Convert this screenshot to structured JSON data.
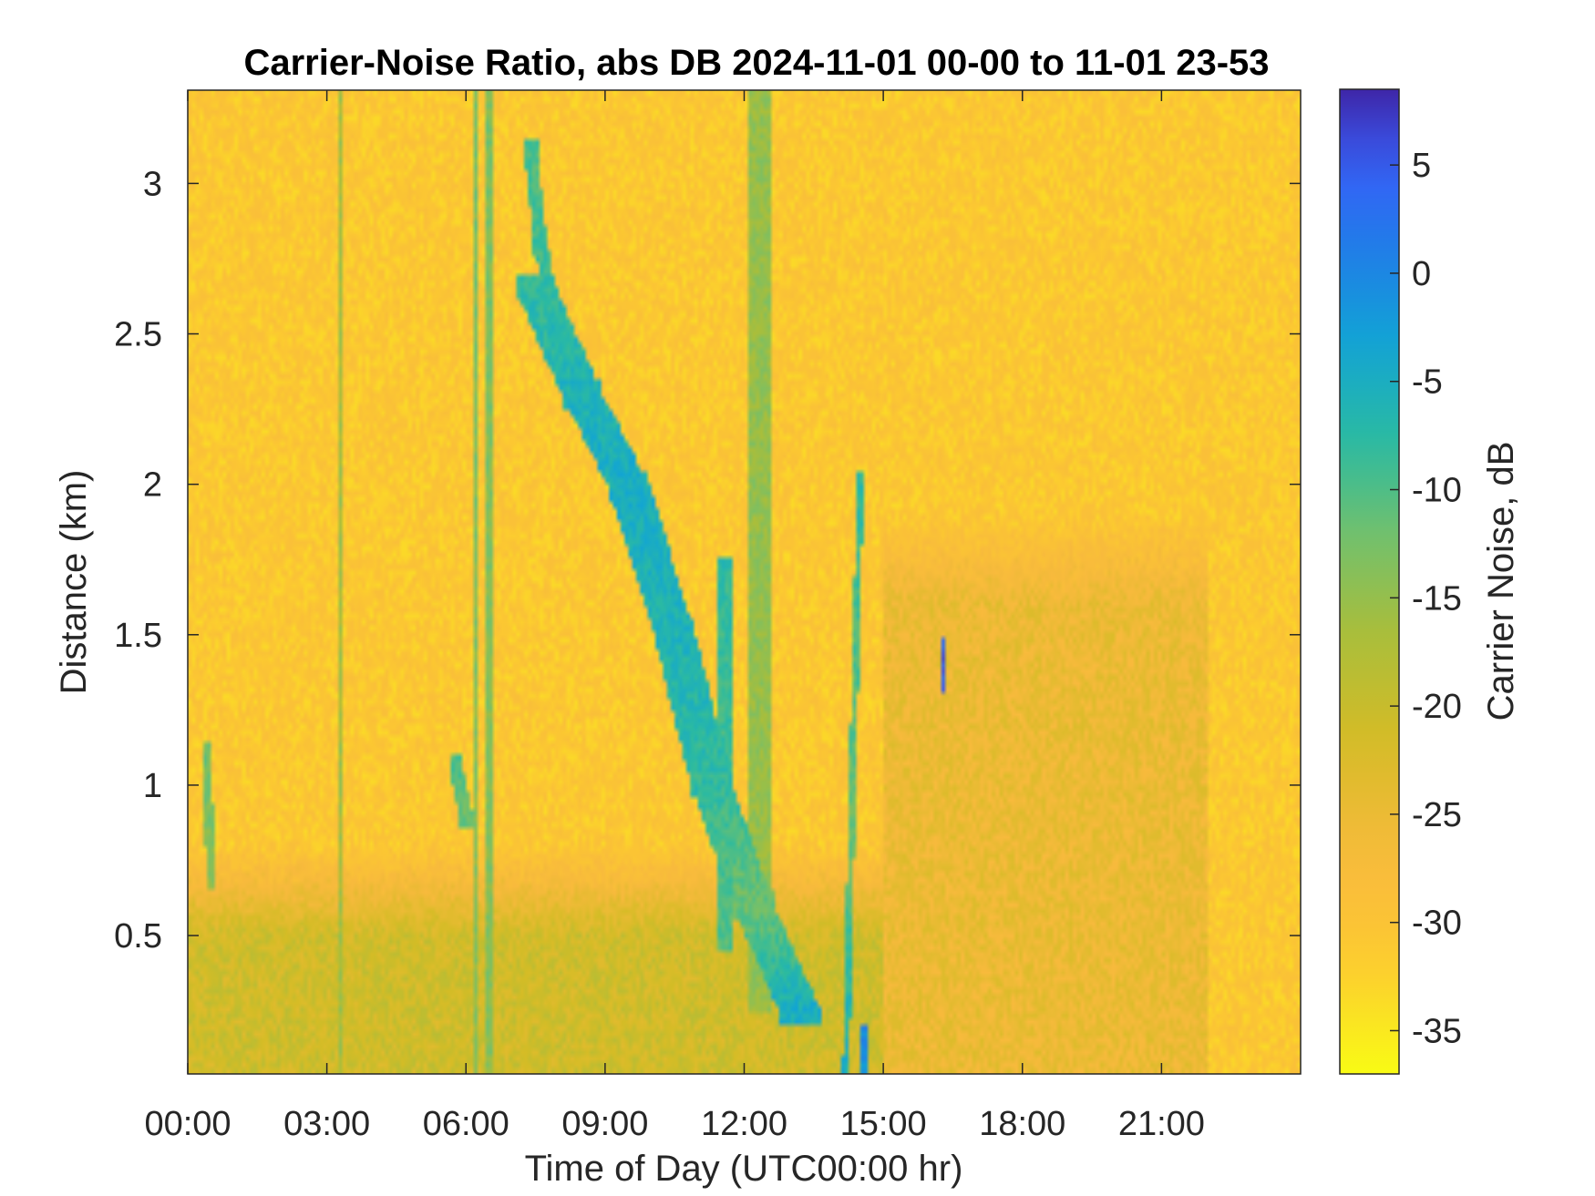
{
  "chart_data": {
    "type": "heatmap",
    "title": "Carrier-Noise Ratio, abs DB 2024-11-01 00-00 to 11-01 23-53",
    "xlabel": "Time of Day (UTC00:00 hr)",
    "ylabel": "Distance (km)",
    "colorbar_label": "Carrier Noise, dB",
    "colormap": "parula (reversed: yellow = low, dark blue = high)",
    "xlim_hours": [
      0,
      24
    ],
    "ylim_km": [
      0.04,
      3.31
    ],
    "clim_db": [
      -37,
      8.5
    ],
    "x_ticks": [
      {
        "hour": 0,
        "label": "00:00"
      },
      {
        "hour": 3,
        "label": "03:00"
      },
      {
        "hour": 6,
        "label": "06:00"
      },
      {
        "hour": 9,
        "label": "09:00"
      },
      {
        "hour": 12,
        "label": "12:00"
      },
      {
        "hour": 15,
        "label": "15:00"
      },
      {
        "hour": 18,
        "label": "18:00"
      },
      {
        "hour": 21,
        "label": "21:00"
      }
    ],
    "y_ticks": [
      {
        "km": 0.5,
        "label": "0.5"
      },
      {
        "km": 1,
        "label": "1"
      },
      {
        "km": 1.5,
        "label": "1.5"
      },
      {
        "km": 2,
        "label": "2"
      },
      {
        "km": 2.5,
        "label": "2.5"
      },
      {
        "km": 3,
        "label": "3"
      }
    ],
    "colorbar_ticks": [
      {
        "db": 5,
        "label": "5"
      },
      {
        "db": 0,
        "label": "0"
      },
      {
        "db": -5,
        "label": "-5"
      },
      {
        "db": -10,
        "label": "-10"
      },
      {
        "db": -15,
        "label": "-15"
      },
      {
        "db": -20,
        "label": "-20"
      },
      {
        "db": -25,
        "label": "-25"
      },
      {
        "db": -30,
        "label": "-30"
      },
      {
        "db": -35,
        "label": "-35"
      }
    ],
    "background_level_db": -31,
    "near_surface_layer": [
      {
        "from_hour": 0,
        "to_hour": 15,
        "top_km": 0.8,
        "level_db": -21
      },
      {
        "from_hour": 15,
        "to_hour": 22,
        "top_km": 1.9,
        "level_db": -25
      }
    ],
    "features": [
      {
        "desc": "cloud band descending",
        "points": [
          [
            7.5,
            2.65,
            -8
          ],
          [
            8.5,
            2.3,
            -6
          ],
          [
            9.5,
            2.0,
            -5
          ],
          [
            10.5,
            1.5,
            -6
          ],
          [
            11.3,
            1.0,
            -8
          ],
          [
            12.2,
            0.6,
            -12
          ],
          [
            13.2,
            0.25,
            -5
          ]
        ],
        "width_hours": 0.9
      },
      {
        "desc": "upper plume",
        "points": [
          [
            7.4,
            3.1,
            -10
          ],
          [
            7.6,
            2.8,
            -9
          ],
          [
            8.0,
            2.5,
            -8
          ]
        ],
        "width_hours": 0.3
      },
      {
        "desc": "column near 06:50",
        "points": [
          [
            6.5,
            3.3,
            -13
          ],
          [
            6.5,
            0.04,
            -14
          ]
        ],
        "width_hours": 0.15
      },
      {
        "desc": "column near 06:20",
        "points": [
          [
            6.2,
            3.3,
            -12
          ],
          [
            6.2,
            0.1,
            -14
          ]
        ],
        "width_hours": 0.1
      },
      {
        "desc": "column near 03:20",
        "points": [
          [
            3.3,
            3.3,
            -16
          ],
          [
            3.3,
            0.04,
            -16
          ]
        ],
        "width_hours": 0.12
      },
      {
        "desc": "column near 12:20",
        "points": [
          [
            12.3,
            3.3,
            -15
          ],
          [
            12.3,
            0.3,
            -15
          ]
        ],
        "width_hours": 0.5
      },
      {
        "desc": "column near 11:40",
        "points": [
          [
            11.6,
            1.7,
            -8
          ],
          [
            11.6,
            0.5,
            -10
          ]
        ],
        "width_hours": 0.3
      },
      {
        "desc": "patch near 05:50",
        "points": [
          [
            5.8,
            1.05,
            -10
          ],
          [
            6.0,
            0.9,
            -12
          ]
        ],
        "width_hours": 0.3
      },
      {
        "desc": "streak near 00:30",
        "points": [
          [
            0.4,
            1.1,
            -12
          ],
          [
            0.5,
            0.7,
            -14
          ]
        ],
        "width_hours": 0.2
      },
      {
        "desc": "streak near 14:30",
        "points": [
          [
            14.5,
            2.0,
            -8
          ],
          [
            14.3,
            0.8,
            -12
          ],
          [
            14.2,
            0.1,
            -5
          ]
        ],
        "width_hours": 0.15
      },
      {
        "desc": "spot near 16:20",
        "points": [
          [
            16.3,
            1.45,
            5
          ],
          [
            16.3,
            1.35,
            4
          ]
        ],
        "width_hours": 0.1
      },
      {
        "desc": "bottom spots near 14:40",
        "points": [
          [
            14.6,
            0.15,
            0
          ],
          [
            14.6,
            0.05,
            -2
          ]
        ],
        "width_hours": 0.2
      }
    ]
  }
}
